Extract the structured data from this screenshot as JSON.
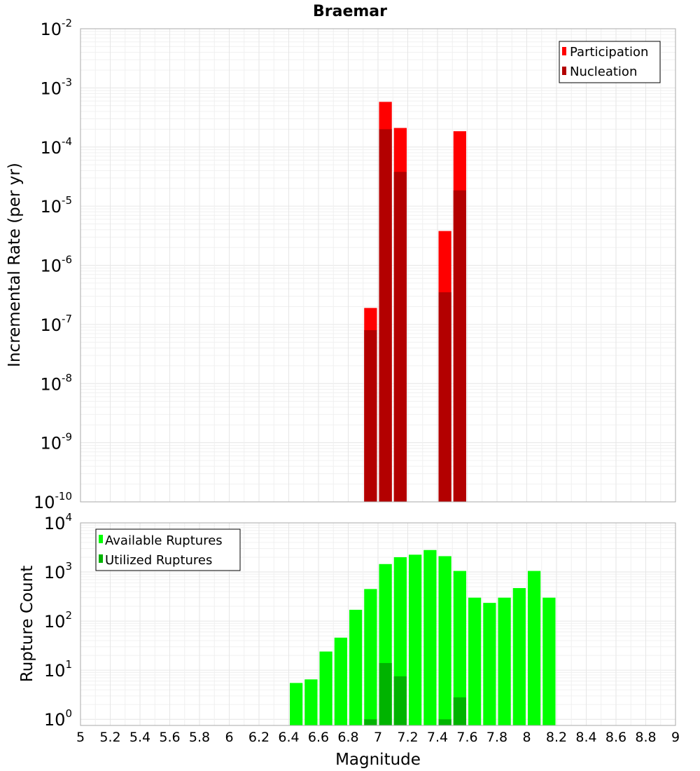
{
  "chart_data": [
    {
      "type": "bar",
      "title": "Braemar",
      "ylabel": "Incremental Rate (per yr)",
      "xlabel": "",
      "xlim": [
        5,
        9
      ],
      "ylim": [
        1e-10,
        0.01
      ],
      "yscale": "log",
      "bin_width": 0.1,
      "grid": true,
      "legend_position": "top-right",
      "x_ticks": [
        "5",
        "5.2",
        "5.4",
        "5.6",
        "5.8",
        "6",
        "6.2",
        "6.4",
        "6.6",
        "6.8",
        "7",
        "7.2",
        "7.4",
        "7.6",
        "7.8",
        "8",
        "8.2",
        "8.4",
        "8.6",
        "8.8",
        "9"
      ],
      "y_tick_exponents": [
        "-10",
        "-9",
        "-8",
        "-7",
        "-6",
        "-5",
        "-4",
        "-3",
        "-2"
      ],
      "series": [
        {
          "name": "Participation",
          "color": "#ff0000",
          "points": [
            {
              "x": 6.95,
              "y": 1.9e-07
            },
            {
              "x": 7.05,
              "y": 0.00058
            },
            {
              "x": 7.15,
              "y": 0.00021
            },
            {
              "x": 7.45,
              "y": 3.8e-06
            },
            {
              "x": 7.55,
              "y": 0.000185
            }
          ]
        },
        {
          "name": "Nucleation",
          "color": "#b30000",
          "points": [
            {
              "x": 6.95,
              "y": 8e-08
            },
            {
              "x": 7.05,
              "y": 0.0002
            },
            {
              "x": 7.15,
              "y": 3.8e-05
            },
            {
              "x": 7.45,
              "y": 3.5e-07
            },
            {
              "x": 7.55,
              "y": 1.85e-05
            }
          ]
        }
      ]
    },
    {
      "type": "bar",
      "title": "",
      "ylabel": "Rupture Count",
      "xlabel": "Magnitude",
      "xlim": [
        5,
        9
      ],
      "ylim": [
        0.75,
        10000
      ],
      "yscale": "log",
      "bin_width": 0.1,
      "grid": true,
      "legend_position": "top-left",
      "x_ticks": [
        "5",
        "5.2",
        "5.4",
        "5.6",
        "5.8",
        "6",
        "6.2",
        "6.4",
        "6.6",
        "6.8",
        "7",
        "7.2",
        "7.4",
        "7.6",
        "7.8",
        "8",
        "8.2",
        "8.4",
        "8.6",
        "8.8",
        "9"
      ],
      "y_tick_exponents": [
        "0",
        "1",
        "2",
        "3",
        "4"
      ],
      "series": [
        {
          "name": "Available Ruptures",
          "color": "#00ff00",
          "points": [
            {
              "x": 6.45,
              "y": 5.5
            },
            {
              "x": 6.55,
              "y": 6.5
            },
            {
              "x": 6.65,
              "y": 24
            },
            {
              "x": 6.75,
              "y": 46
            },
            {
              "x": 6.85,
              "y": 170
            },
            {
              "x": 6.95,
              "y": 450
            },
            {
              "x": 7.05,
              "y": 1450
            },
            {
              "x": 7.15,
              "y": 2000
            },
            {
              "x": 7.25,
              "y": 2250
            },
            {
              "x": 7.35,
              "y": 2800
            },
            {
              "x": 7.45,
              "y": 2100
            },
            {
              "x": 7.55,
              "y": 1050
            },
            {
              "x": 7.65,
              "y": 300
            },
            {
              "x": 7.75,
              "y": 235
            },
            {
              "x": 7.85,
              "y": 300
            },
            {
              "x": 7.95,
              "y": 470
            },
            {
              "x": 8.05,
              "y": 1050
            },
            {
              "x": 8.15,
              "y": 300
            }
          ]
        },
        {
          "name": "Utilized Ruptures",
          "color": "#00b300",
          "points": [
            {
              "x": 6.95,
              "y": 1
            },
            {
              "x": 7.05,
              "y": 14
            },
            {
              "x": 7.15,
              "y": 7.5
            },
            {
              "x": 7.45,
              "y": 1
            },
            {
              "x": 7.55,
              "y": 2.8
            }
          ]
        }
      ]
    }
  ]
}
